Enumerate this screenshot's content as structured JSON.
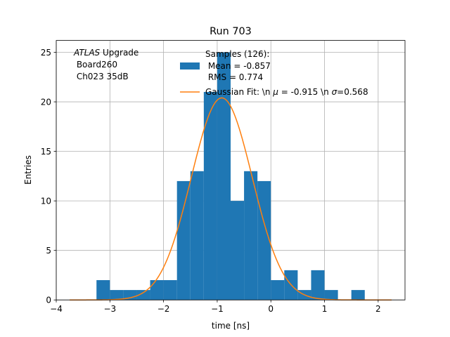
{
  "chart_data": {
    "type": "bar",
    "title": "Run 703",
    "xlabel": "time [ns]",
    "ylabel": "Entries",
    "xlim": [
      -4,
      2.5
    ],
    "ylim": [
      0,
      26.2
    ],
    "grid": true,
    "x_ticks": [
      -4,
      -3,
      -2,
      -1,
      0,
      1,
      2
    ],
    "x_tick_labels": [
      "−4",
      "−3",
      "−2",
      "−1",
      "0",
      "1",
      "2"
    ],
    "y_ticks": [
      0,
      5,
      10,
      15,
      20,
      25
    ],
    "y_tick_labels": [
      "0",
      "5",
      "10",
      "15",
      "20",
      "25"
    ],
    "histogram": {
      "name": "Samples (126):\n Mean = -0.857\n RMS = 0.774",
      "color": "#1f77b4",
      "bin_edges": [
        -3.25,
        -3.0,
        -2.75,
        -2.5,
        -2.25,
        -2.0,
        -1.75,
        -1.5,
        -1.25,
        -1.0,
        -0.75,
        -0.5,
        -0.25,
        0.0,
        0.25,
        0.5,
        0.75,
        1.0,
        1.25,
        1.5,
        1.75
      ],
      "counts": [
        2,
        1,
        1,
        1,
        2,
        2,
        12,
        13,
        21,
        25,
        10,
        13,
        12,
        2,
        3,
        1,
        3,
        1,
        0,
        1
      ]
    },
    "fit": {
      "name": "Gaussian Fit: \\n $\\mu$ = -0.915 \\n $\\sigma$=0.568",
      "color": "#ff7f0e",
      "mu": -0.915,
      "sigma": 0.568,
      "amplitude": 20.4,
      "x_range": [
        -3.75,
        2.25
      ]
    },
    "annotation": {
      "line1_italic": "ATLAS",
      "line1_rest": " Upgrade",
      "line2": " Board260",
      "line3": " Ch023 35dB"
    },
    "legend": {
      "placement": "upper center",
      "hist_lines": [
        "Samples (126):",
        " Mean = -0.857",
        " RMS = 0.774"
      ],
      "fit_prefix": "Gaussian Fit: \\n ",
      "fit_mu_symbol": "μ",
      "fit_mid": " = -0.915 \\n ",
      "fit_sigma_symbol": "σ",
      "fit_suffix": "=0.568"
    }
  }
}
